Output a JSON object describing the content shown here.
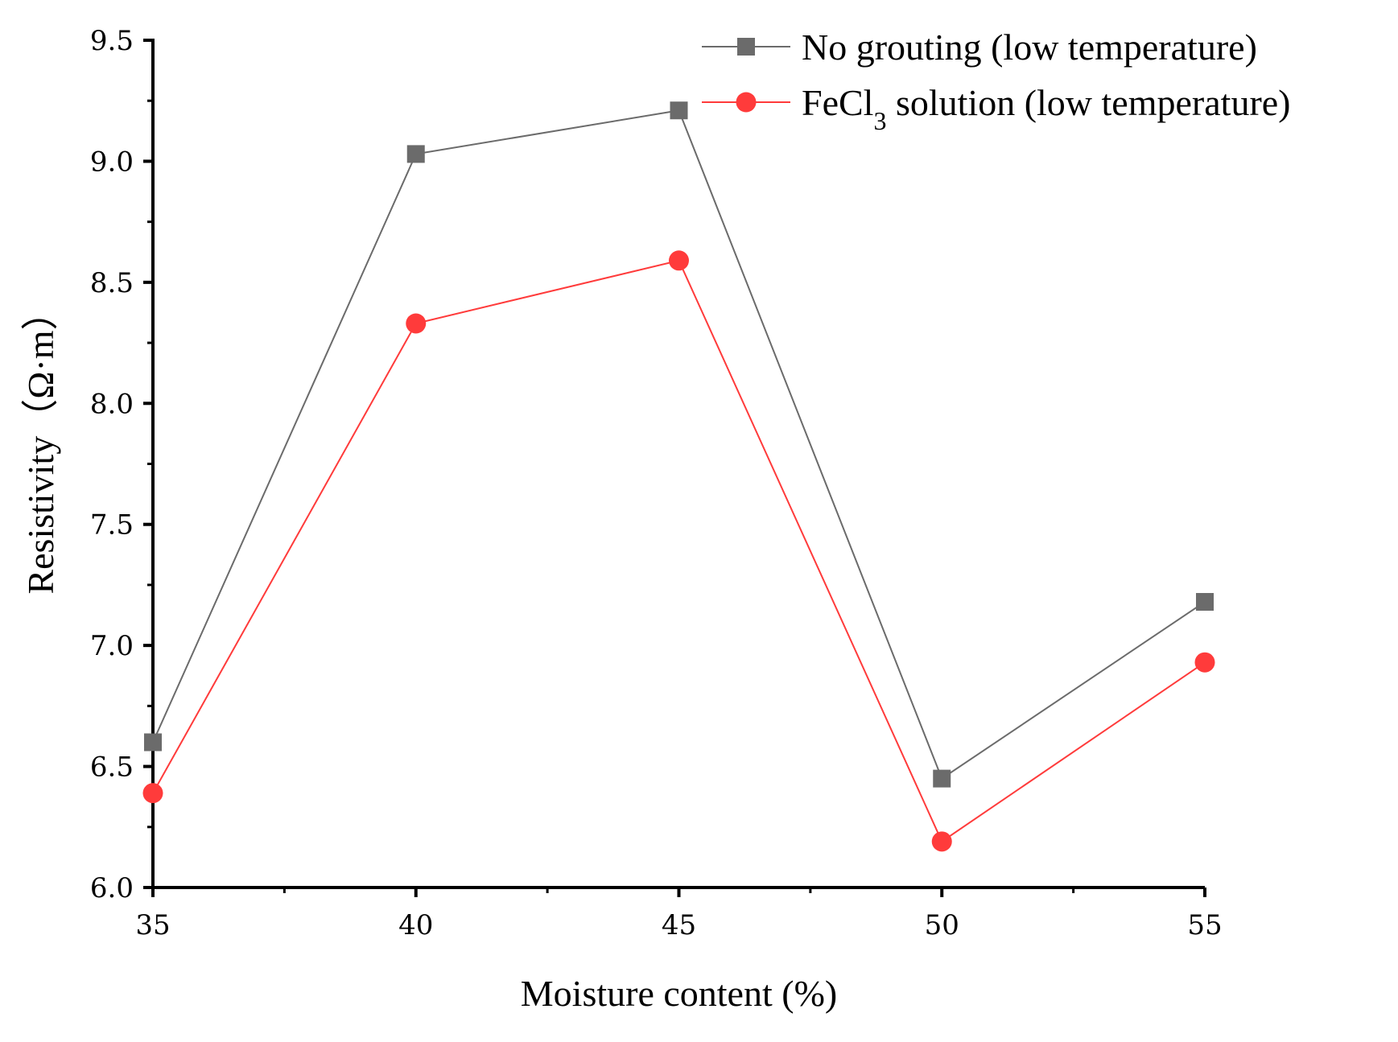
{
  "chart_data": {
    "type": "line",
    "title": "",
    "xlabel": "Moisture content (%)",
    "ylabel": "Resistivity（Ω·m）",
    "x": [
      35,
      40,
      45,
      50,
      55
    ],
    "xlim": [
      35,
      55
    ],
    "ylim": [
      6.0,
      9.5
    ],
    "x_ticks": [
      "35",
      "40",
      "45",
      "50",
      "55"
    ],
    "y_ticks": [
      "6.0",
      "6.5",
      "7.0",
      "7.5",
      "8.0",
      "8.5",
      "9.0",
      "9.5"
    ],
    "grid": false,
    "legend_position": "top-right",
    "series": [
      {
        "name": "No grouting (low temperature)",
        "color": "#6b6b6b",
        "marker": "square",
        "values": [
          6.6,
          9.03,
          9.21,
          6.45,
          7.18
        ]
      },
      {
        "name_prefix": "FeCl",
        "name_subscript": "3",
        "name_suffix": " solution (low temperature)",
        "color": "#ff3b3b",
        "marker": "circle",
        "values": [
          6.39,
          8.33,
          8.59,
          6.19,
          6.93
        ]
      }
    ]
  }
}
